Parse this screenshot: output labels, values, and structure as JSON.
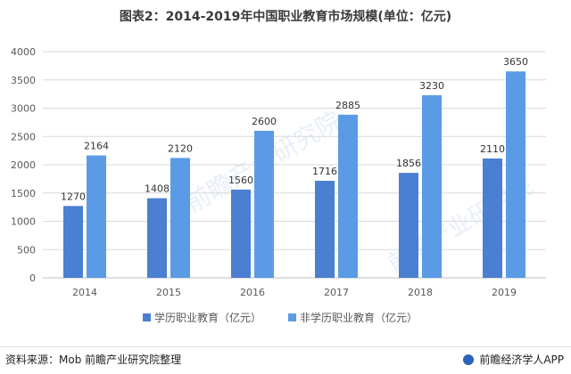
{
  "title": "图表2：2014-2019年中国职业教育市场规模(单位：亿元)",
  "footer": {
    "source": "资料来源：Mob 前瞻产业研究院整理",
    "brand": "前瞻经济学人APP"
  },
  "watermark": "前瞻产业研究院",
  "colors": {
    "series1": "#4a7fd1",
    "series2": "#5b9be6",
    "grid": "#d9d9d9",
    "text": "#595959"
  },
  "chart_data": {
    "type": "bar",
    "title": "图表2：2014-2019年中国职业教育市场规模(单位：亿元)",
    "categories": [
      "2014",
      "2015",
      "2016",
      "2017",
      "2018",
      "2019"
    ],
    "series": [
      {
        "name": "学历职业教育（亿元）",
        "values": [
          1270,
          1408,
          1560,
          1716,
          1856,
          2110
        ]
      },
      {
        "name": "非学历职业教育（亿元）",
        "values": [
          2164,
          2120,
          2600,
          2885,
          3230,
          3650
        ]
      }
    ],
    "ylim": [
      0,
      4000
    ],
    "yticks": [
      0,
      500,
      1000,
      1500,
      2000,
      2500,
      3000,
      3500,
      4000
    ],
    "grid": true,
    "legend": "bottom"
  }
}
